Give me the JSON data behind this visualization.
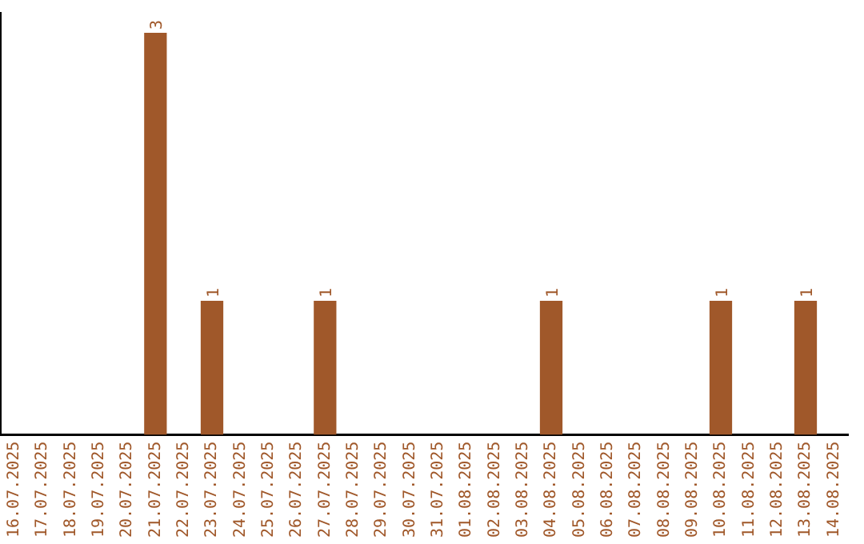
{
  "chart_data": {
    "type": "bar",
    "categories": [
      "16.07.2025",
      "17.07.2025",
      "18.07.2025",
      "19.07.2025",
      "20.07.2025",
      "21.07.2025",
      "22.07.2025",
      "23.07.2025",
      "24.07.2025",
      "25.07.2025",
      "26.07.2025",
      "27.07.2025",
      "28.07.2025",
      "29.07.2025",
      "30.07.2025",
      "31.07.2025",
      "01.08.2025",
      "02.08.2025",
      "03.08.2025",
      "04.08.2025",
      "05.08.2025",
      "06.08.2025",
      "07.08.2025",
      "08.08.2025",
      "09.08.2025",
      "10.08.2025",
      "11.08.2025",
      "12.08.2025",
      "13.08.2025",
      "14.08.2025"
    ],
    "values": [
      0,
      0,
      0,
      0,
      0,
      3,
      0,
      1,
      0,
      0,
      0,
      1,
      0,
      0,
      0,
      0,
      0,
      0,
      0,
      1,
      0,
      0,
      0,
      0,
      0,
      1,
      0,
      0,
      1,
      0
    ],
    "value_labels": [
      null,
      null,
      null,
      null,
      null,
      "3",
      null,
      "1",
      null,
      null,
      null,
      "1",
      null,
      null,
      null,
      null,
      null,
      null,
      null,
      "1",
      null,
      null,
      null,
      null,
      null,
      "1",
      null,
      null,
      "1",
      null
    ],
    "color": "#a0582a",
    "ylim": [
      0,
      3.15
    ],
    "tick_labels": "x",
    "grid": false,
    "legend": false
  }
}
